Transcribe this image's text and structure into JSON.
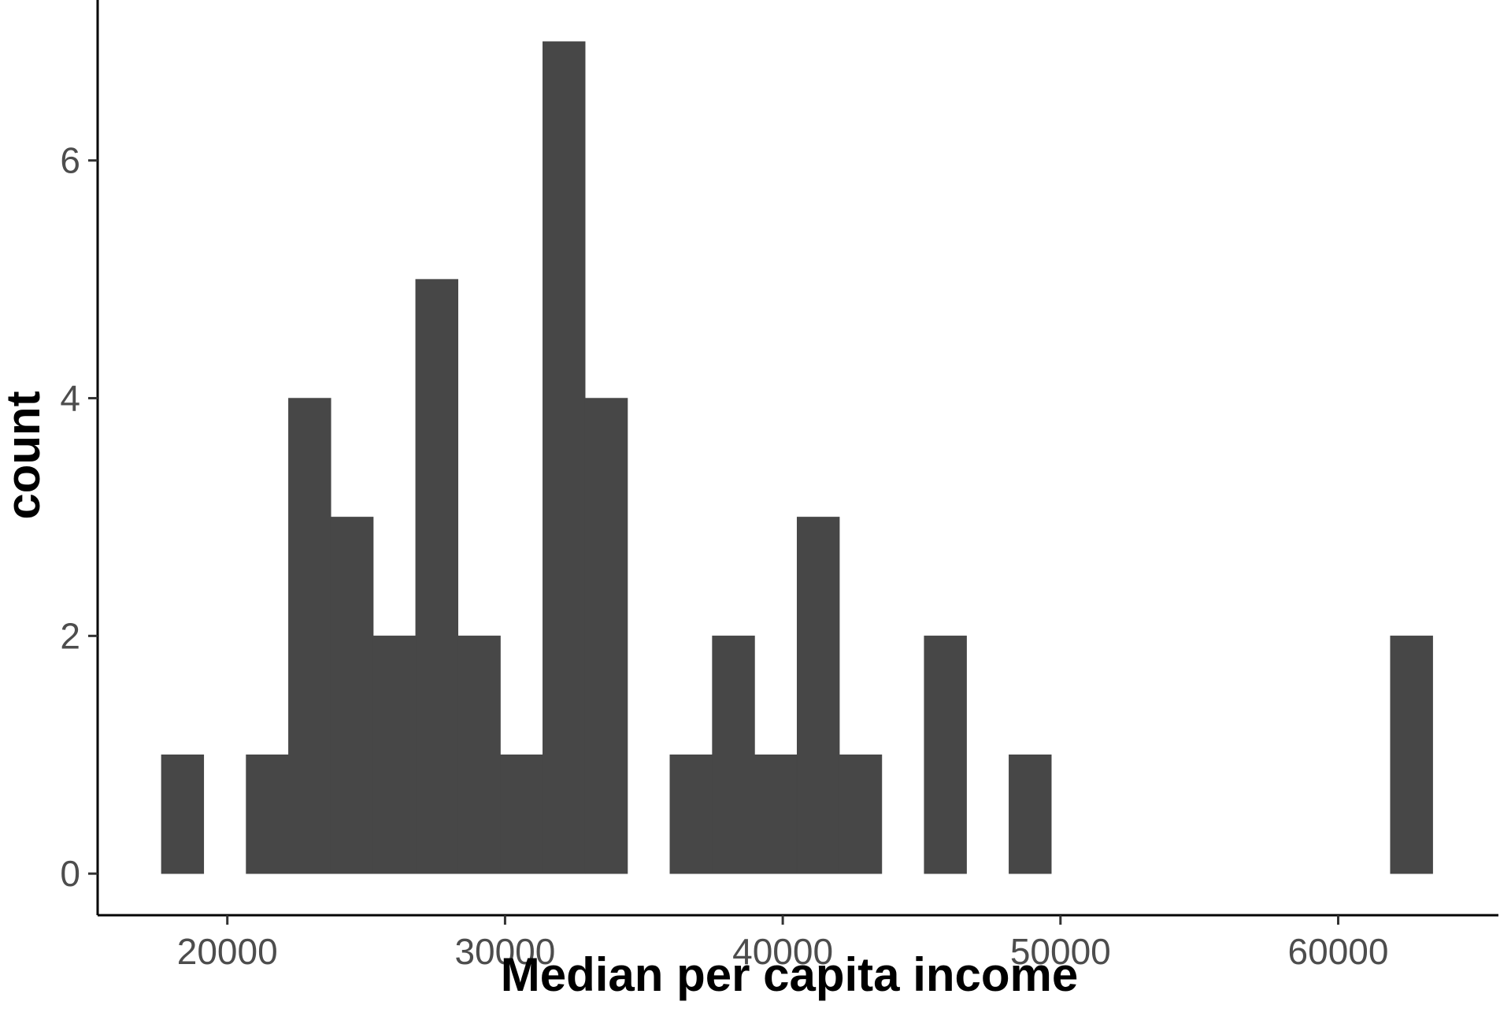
{
  "chart_data": {
    "type": "bar",
    "subtype": "histogram",
    "title": "",
    "xlabel": "Median per capita income",
    "ylabel": "count",
    "bin_width": 1526,
    "bins": [
      {
        "x0": 17625,
        "x1": 19151,
        "count": 1
      },
      {
        "x0": 19151,
        "x1": 20677,
        "count": 0
      },
      {
        "x0": 20677,
        "x1": 22203,
        "count": 1
      },
      {
        "x0": 22203,
        "x1": 23729,
        "count": 4
      },
      {
        "x0": 23729,
        "x1": 25255,
        "count": 3
      },
      {
        "x0": 25255,
        "x1": 26781,
        "count": 2
      },
      {
        "x0": 26781,
        "x1": 28307,
        "count": 5
      },
      {
        "x0": 28307,
        "x1": 29833,
        "count": 2
      },
      {
        "x0": 29833,
        "x1": 31359,
        "count": 1
      },
      {
        "x0": 31359,
        "x1": 32885,
        "count": 7
      },
      {
        "x0": 32885,
        "x1": 34411,
        "count": 4
      },
      {
        "x0": 34411,
        "x1": 35937,
        "count": 0
      },
      {
        "x0": 35937,
        "x1": 37463,
        "count": 1
      },
      {
        "x0": 37463,
        "x1": 38989,
        "count": 2
      },
      {
        "x0": 38989,
        "x1": 40515,
        "count": 1
      },
      {
        "x0": 40515,
        "x1": 42041,
        "count": 3
      },
      {
        "x0": 42041,
        "x1": 43567,
        "count": 1
      },
      {
        "x0": 43567,
        "x1": 45093,
        "count": 0
      },
      {
        "x0": 45093,
        "x1": 46619,
        "count": 2
      },
      {
        "x0": 46619,
        "x1": 48145,
        "count": 0
      },
      {
        "x0": 48145,
        "x1": 49671,
        "count": 1
      },
      {
        "x0": 49671,
        "x1": 51197,
        "count": 0
      },
      {
        "x0": 51197,
        "x1": 52723,
        "count": 0
      },
      {
        "x0": 52723,
        "x1": 54249,
        "count": 0
      },
      {
        "x0": 54249,
        "x1": 55775,
        "count": 0
      },
      {
        "x0": 55775,
        "x1": 57301,
        "count": 0
      },
      {
        "x0": 57301,
        "x1": 58827,
        "count": 0
      },
      {
        "x0": 58827,
        "x1": 60353,
        "count": 0
      },
      {
        "x0": 60353,
        "x1": 61879,
        "count": 0
      },
      {
        "x0": 61879,
        "x1": 63405,
        "count": 2
      }
    ],
    "xlim": [
      15330,
      65770
    ],
    "ylim": [
      -0.35,
      7.35
    ],
    "x_ticks": [
      20000,
      30000,
      40000,
      50000,
      60000
    ],
    "x_tick_labels": [
      "20000",
      "30000",
      "40000",
      "50000",
      "60000"
    ],
    "y_ticks": [
      0,
      2,
      4,
      6
    ],
    "y_tick_labels": [
      "0",
      "2",
      "4",
      "6"
    ],
    "bar_color": "#474747",
    "grid": false,
    "legend": "none"
  }
}
